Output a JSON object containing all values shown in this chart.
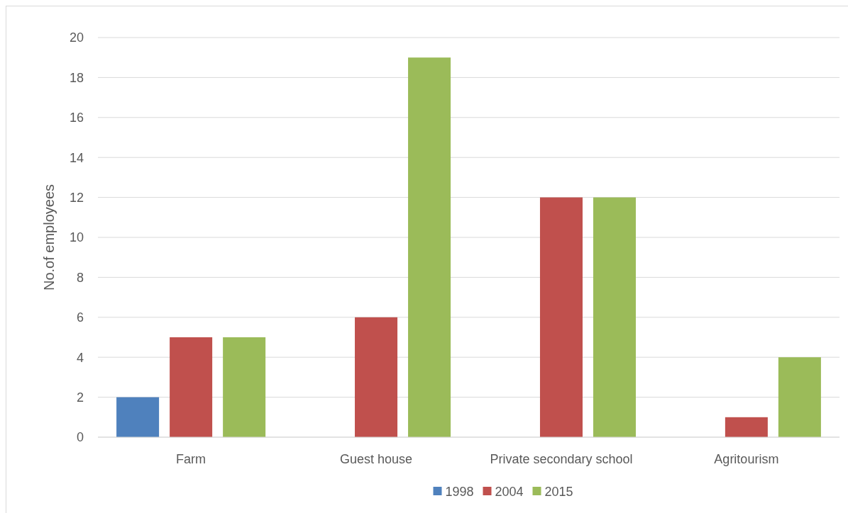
{
  "chart_data": {
    "type": "bar",
    "ylabel": "No.of employees",
    "categories": [
      "Farm",
      "Guest house",
      "Private secondary school",
      "Agritourism"
    ],
    "series": [
      {
        "name": "1998",
        "color": "#4f81bd",
        "values": [
          2,
          null,
          null,
          null
        ]
      },
      {
        "name": "2004",
        "color": "#c0504d",
        "values": [
          5,
          6,
          12,
          1
        ]
      },
      {
        "name": "2015",
        "color": "#9bbb59",
        "values": [
          5,
          19,
          12,
          4
        ]
      }
    ],
    "ylim": [
      0,
      20
    ],
    "yticks": [
      0,
      2,
      4,
      6,
      8,
      10,
      12,
      14,
      16,
      18,
      20
    ],
    "grid": "y",
    "legend": "bottom"
  }
}
